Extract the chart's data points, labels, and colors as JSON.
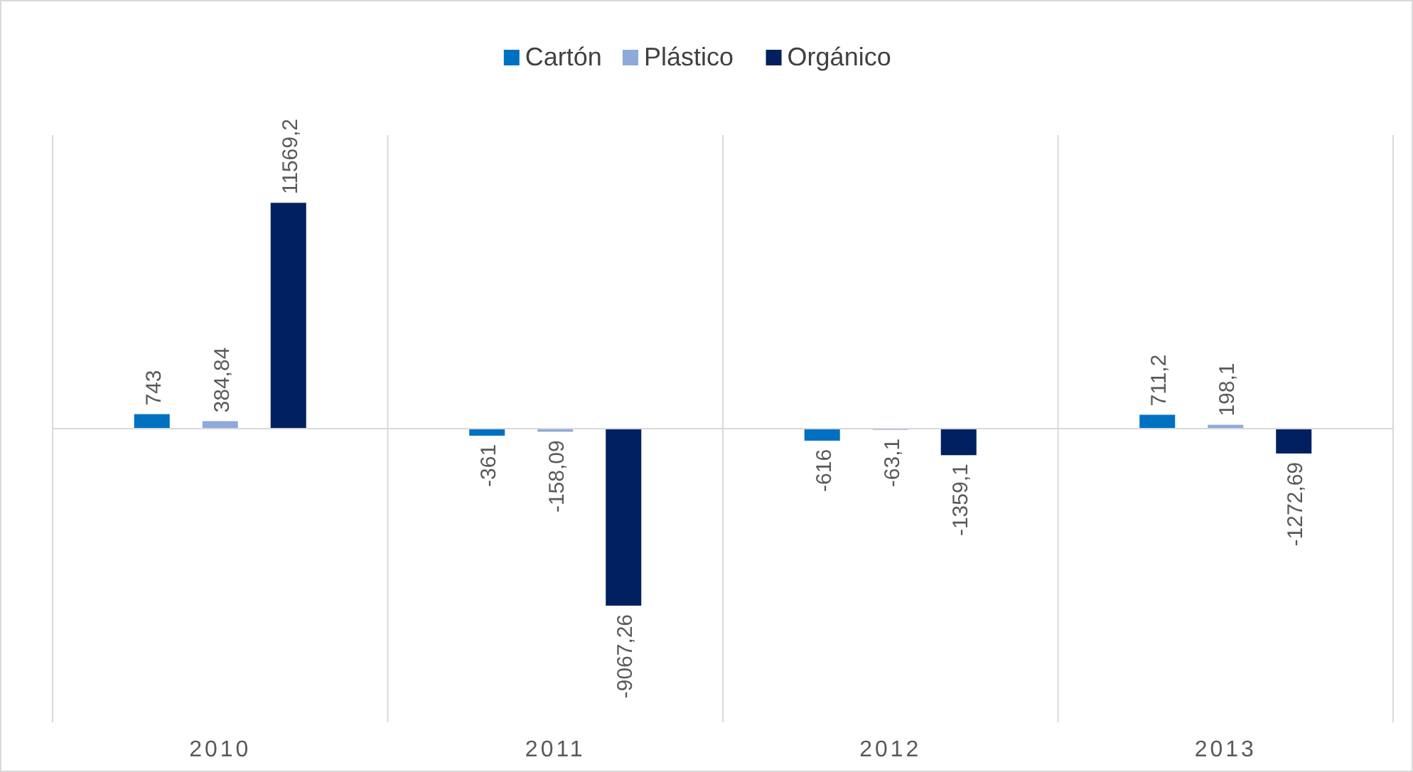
{
  "chart_data": {
    "type": "bar",
    "categories": [
      "2010",
      "2011",
      "2012",
      "2013"
    ],
    "series": [
      {
        "name": "Cartón",
        "color": "#0070c0",
        "values": [
          743,
          -361,
          -616,
          711.2
        ],
        "value_labels": [
          "743",
          "-361",
          "-616",
          "711,2"
        ]
      },
      {
        "name": "Plástico",
        "color": "#8eaadb",
        "values": [
          384.84,
          -158.09,
          -63.1,
          198.1
        ],
        "value_labels": [
          "384,84",
          "-158,09",
          "-63,1",
          "198,1"
        ]
      },
      {
        "name": "Orgánico",
        "color": "#002060",
        "values": [
          11569.2,
          -9067.26,
          -1359.1,
          -1272.69
        ],
        "value_labels": [
          "11569,2",
          "-9067,26",
          "-1359,1",
          "-1272,69"
        ]
      }
    ],
    "grid": "x",
    "legend": "top"
  }
}
